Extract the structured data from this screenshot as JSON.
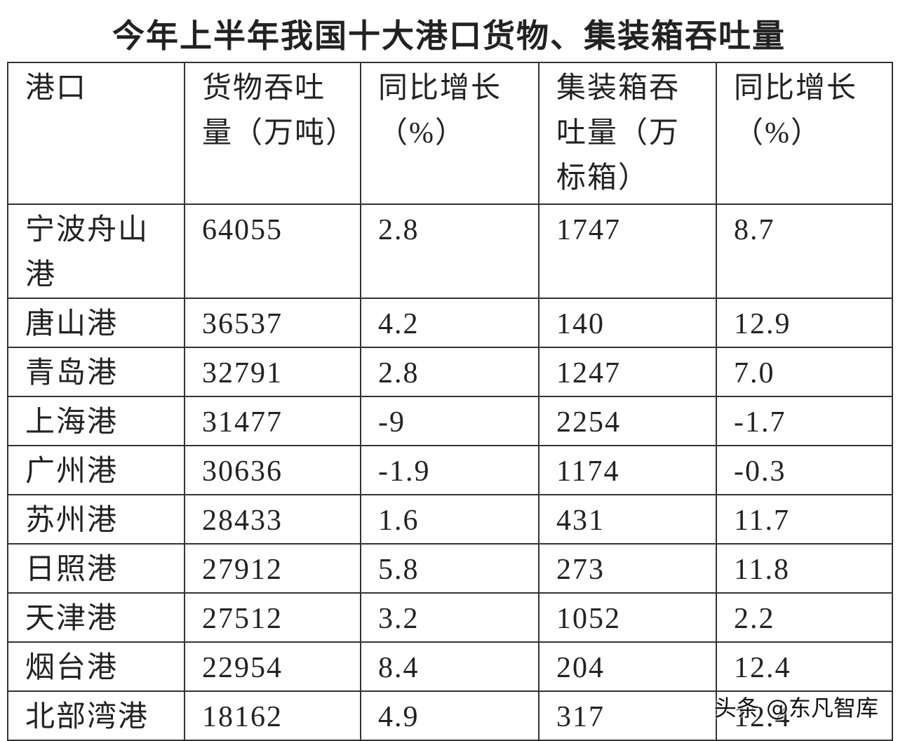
{
  "title": "今年上半年我国十大港口货物、集装箱吞吐量",
  "table": {
    "header": [
      "港口",
      "货物吞吐量（万吨）",
      "同比增长（%）",
      "集装箱吞吐量（万标箱）",
      "同比增长（%）"
    ],
    "rows": [
      [
        "宁波舟山港",
        "64055",
        "2.8",
        "1747",
        "8.7"
      ],
      [
        "唐山港",
        "36537",
        "4.2",
        "140",
        "12.9"
      ],
      [
        "青岛港",
        "32791",
        "2.8",
        "1247",
        "7.0"
      ],
      [
        "上海港",
        "31477",
        "-9",
        "2254",
        "-1.7"
      ],
      [
        "广州港",
        "30636",
        "-1.9",
        "1174",
        "-0.3"
      ],
      [
        "苏州港",
        "28433",
        "1.6",
        "431",
        "11.7"
      ],
      [
        "日照港",
        "27912",
        "5.8",
        "273",
        "11.8"
      ],
      [
        "天津港",
        "27512",
        "3.2",
        "1052",
        "2.2"
      ],
      [
        "烟台港",
        "22954",
        "8.4",
        "204",
        "12.4"
      ],
      [
        "北部湾港",
        "18162",
        "4.9",
        "317",
        "12.4"
      ]
    ]
  },
  "watermark": "头条 @东凡智库"
}
